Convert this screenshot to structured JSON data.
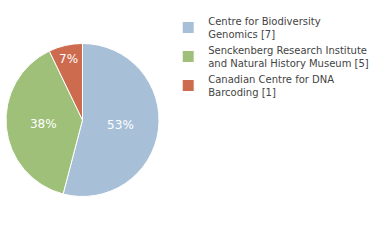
{
  "chart_data": {
    "type": "pie",
    "categories": [
      "Centre for Biodiversity\nGenomics [7]",
      "Senckenberg Research Institute\nand Natural History Museum [5]",
      "Canadian Centre for DNA\nBarcoding [1]"
    ],
    "values": [
      53,
      38,
      7
    ],
    "value_labels": [
      "53%",
      "38%",
      "7%"
    ],
    "colors": [
      "#a8bfd8",
      "#9ec078",
      "#cc6b4e"
    ],
    "data_labels": true,
    "legend": "right"
  }
}
